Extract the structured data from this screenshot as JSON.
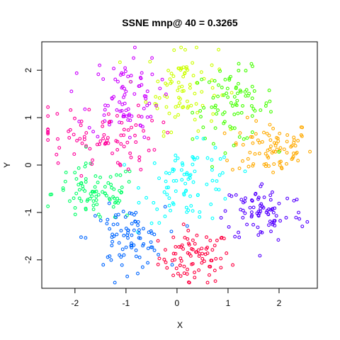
{
  "chart_data": {
    "type": "scatter",
    "title": "SSNE mnp@ 40 = 0.3265",
    "xlabel": "X",
    "ylabel": "Y",
    "xlim": [
      -2.65,
      2.75
    ],
    "ylim": [
      -2.6,
      2.6
    ],
    "x_ticks": [
      -2,
      -1,
      0,
      1,
      2
    ],
    "y_ticks": [
      -2,
      -1,
      0,
      1,
      2
    ],
    "x_tick_labels": [
      "-2",
      "-1",
      "0",
      "1",
      "2"
    ],
    "y_tick_labels": [
      "-2",
      "-1",
      "0",
      "1",
      "2"
    ],
    "grid": false,
    "legend": "none",
    "series": [
      {
        "color": "#ff0040",
        "center": [
          0.35,
          -1.95
        ],
        "spread": [
          0.35,
          0.28
        ],
        "count": 85
      },
      {
        "color": "#ffaa00",
        "center": [
          1.85,
          0.35
        ],
        "spread": [
          0.4,
          0.3
        ],
        "count": 85
      },
      {
        "color": "#ccff00",
        "center": [
          0.1,
          1.65
        ],
        "spread": [
          0.35,
          0.45
        ],
        "count": 85
      },
      {
        "color": "#44ff00",
        "center": [
          1.1,
          1.25
        ],
        "spread": [
          0.4,
          0.38
        ],
        "count": 85
      },
      {
        "color": "#00ff66",
        "center": [
          -1.6,
          -0.6
        ],
        "spread": [
          0.42,
          0.3
        ],
        "count": 85
      },
      {
        "color": "#00ffff",
        "center": [
          0.25,
          -0.4
        ],
        "spread": [
          0.45,
          0.4
        ],
        "count": 85
      },
      {
        "color": "#0066ff",
        "center": [
          -1.0,
          -1.55
        ],
        "spread": [
          0.38,
          0.33
        ],
        "count": 85
      },
      {
        "color": "#5500ff",
        "center": [
          1.7,
          -1.0
        ],
        "spread": [
          0.4,
          0.32
        ],
        "count": 85
      },
      {
        "color": "#cc00ff",
        "center": [
          -1.05,
          1.45
        ],
        "spread": [
          0.35,
          0.45
        ],
        "count": 85
      },
      {
        "color": "#ff0099",
        "center": [
          -1.6,
          0.55
        ],
        "spread": [
          0.6,
          0.35
        ],
        "count": 85
      }
    ]
  }
}
